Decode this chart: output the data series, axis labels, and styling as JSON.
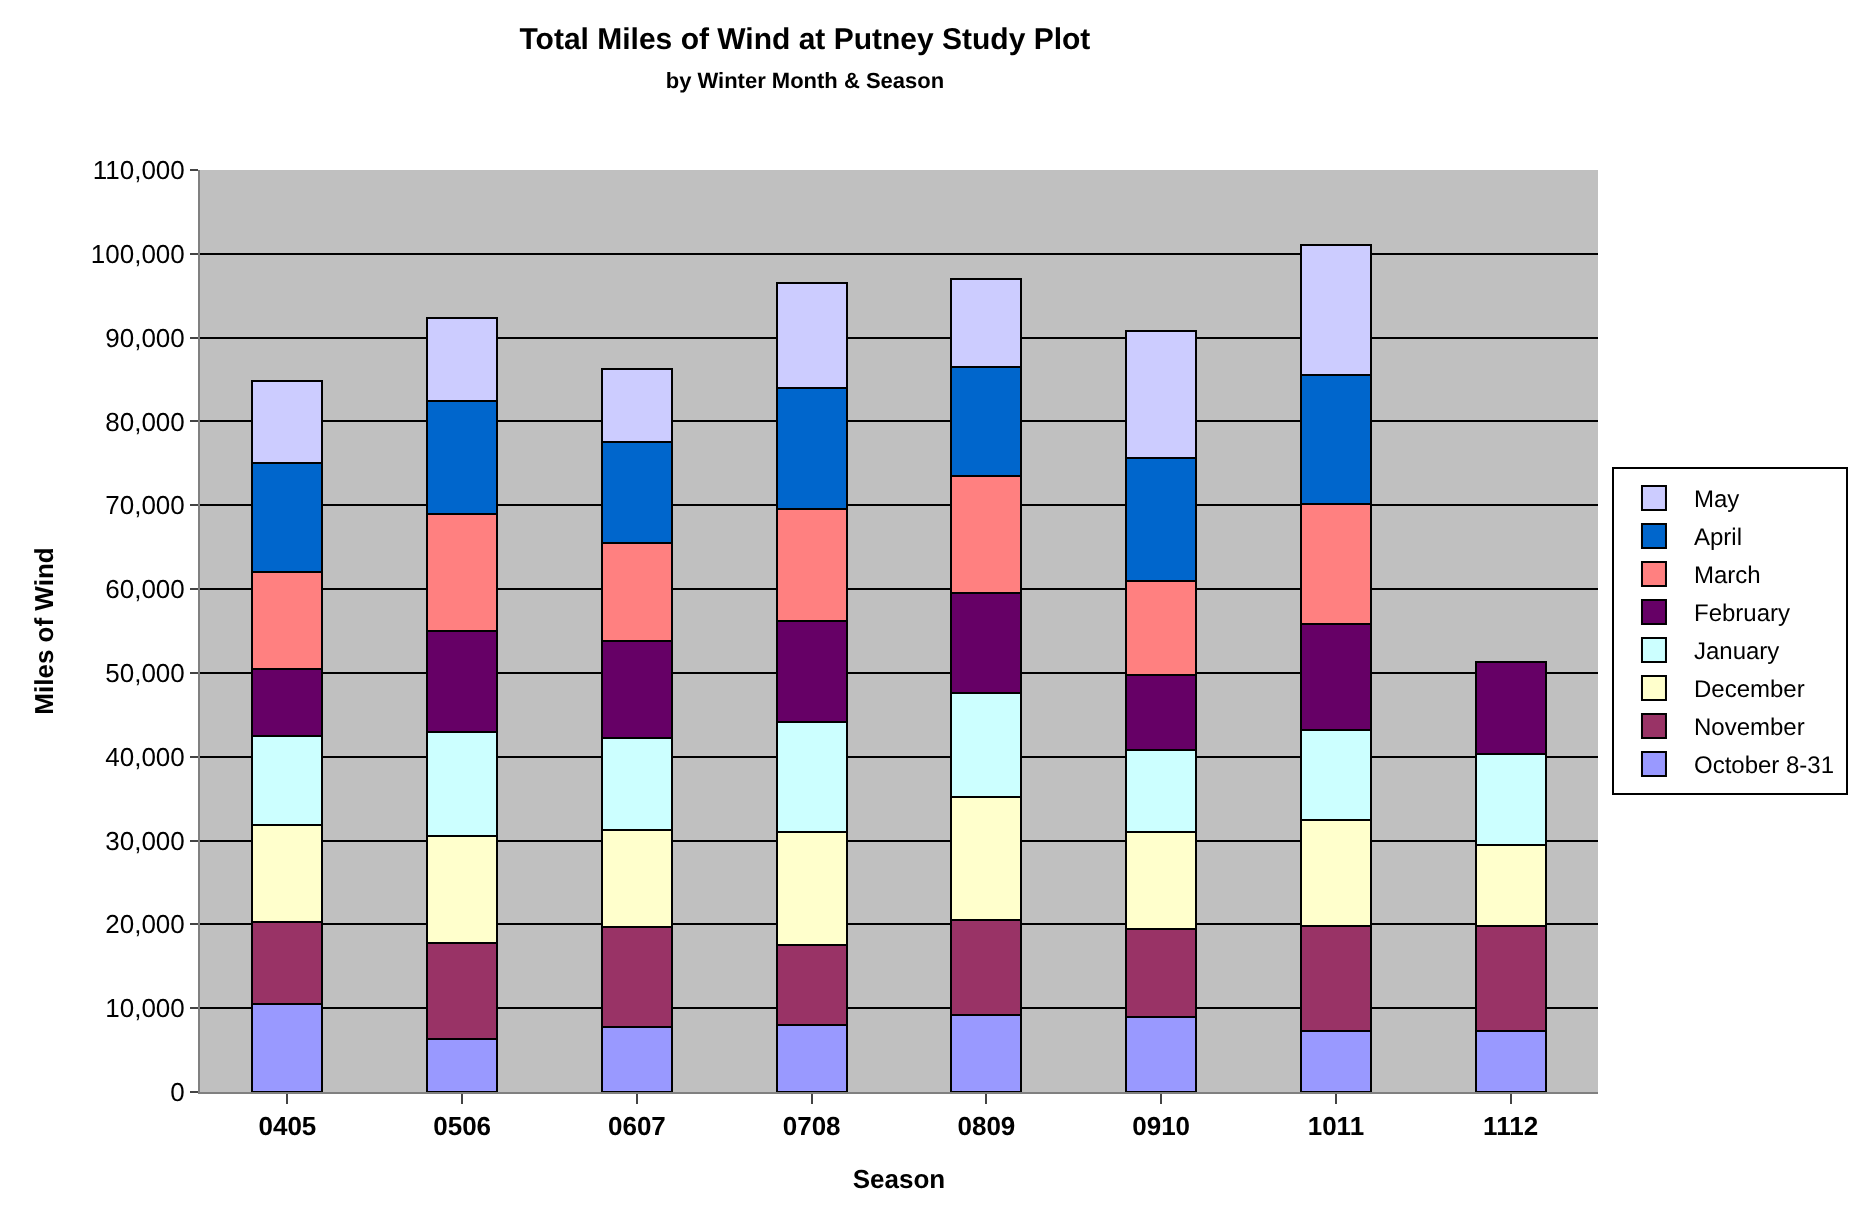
{
  "chart_data": {
    "type": "bar",
    "title": "Total Miles of Wind at Putney Study Plot",
    "subtitle": "by Winter Month & Season",
    "xlabel": "Season",
    "ylabel": "Miles of Wind",
    "categories": [
      "0405",
      "0506",
      "0607",
      "0708",
      "0809",
      "0910",
      "1011",
      "1112"
    ],
    "stacked": true,
    "grid": "y",
    "legend": "right",
    "ylim": [
      0,
      110000
    ],
    "yticks": [
      {
        "value": 0,
        "label": "0"
      },
      {
        "value": 10000,
        "label": "10,000"
      },
      {
        "value": 20000,
        "label": "20,000"
      },
      {
        "value": 30000,
        "label": "30,000"
      },
      {
        "value": 40000,
        "label": "40,000"
      },
      {
        "value": 50000,
        "label": "50,000"
      },
      {
        "value": 60000,
        "label": "60,000"
      },
      {
        "value": 70000,
        "label": "70,000"
      },
      {
        "value": 80000,
        "label": "80,000"
      },
      {
        "value": 90000,
        "label": "90,000"
      },
      {
        "value": 100000,
        "label": "100,000"
      },
      {
        "value": 110000,
        "label": "110,000"
      }
    ],
    "series": [
      {
        "name": "October 8-31",
        "color": "#9999ff",
        "values": [
          10500,
          6300,
          7700,
          8000,
          9200,
          9000,
          7300,
          7300
        ]
      },
      {
        "name": "November",
        "color": "#993366",
        "values": [
          9800,
          11500,
          12000,
          9500,
          11300,
          10500,
          12500,
          12500
        ]
      },
      {
        "name": "December",
        "color": "#ffffcc",
        "values": [
          11500,
          12700,
          11500,
          13500,
          14700,
          11500,
          12700,
          9700
        ]
      },
      {
        "name": "January",
        "color": "#ccffff",
        "values": [
          10700,
          12500,
          11000,
          13200,
          12400,
          9800,
          10700,
          10800
        ]
      },
      {
        "name": "February",
        "color": "#660066",
        "values": [
          8000,
          12000,
          11600,
          12000,
          11900,
          9000,
          12600,
          11000
        ]
      },
      {
        "name": "March",
        "color": "#ff8080",
        "values": [
          11500,
          14000,
          11700,
          13300,
          14000,
          11200,
          14400,
          null
        ]
      },
      {
        "name": "April",
        "color": "#0066cc",
        "values": [
          13000,
          13500,
          12000,
          14500,
          13000,
          14700,
          15300,
          null
        ]
      },
      {
        "name": "May",
        "color": "#ccccff",
        "values": [
          9800,
          9800,
          8700,
          12500,
          10500,
          15100,
          15500,
          null
        ]
      }
    ]
  }
}
